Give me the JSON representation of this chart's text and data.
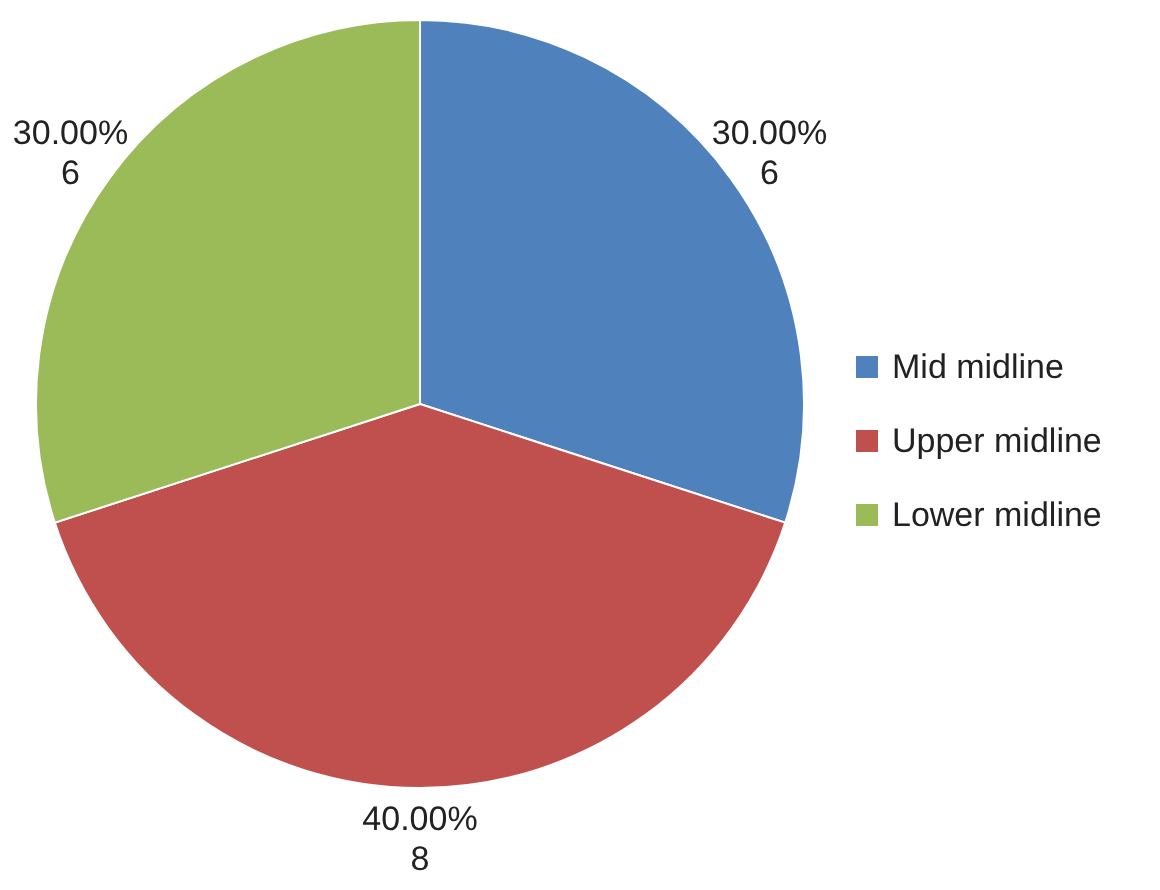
{
  "chart_data": {
    "type": "pie",
    "categories": [
      "Mid midline",
      "Upper midline",
      "Lower midline"
    ],
    "values": [
      6,
      8,
      6
    ],
    "colors": [
      "#4f81bd",
      "#c0504d",
      "#9bbb59"
    ],
    "value_labels": [
      "30.00%\n6",
      "40.00%\n8",
      "30.00%\n6"
    ],
    "legend": "right"
  }
}
